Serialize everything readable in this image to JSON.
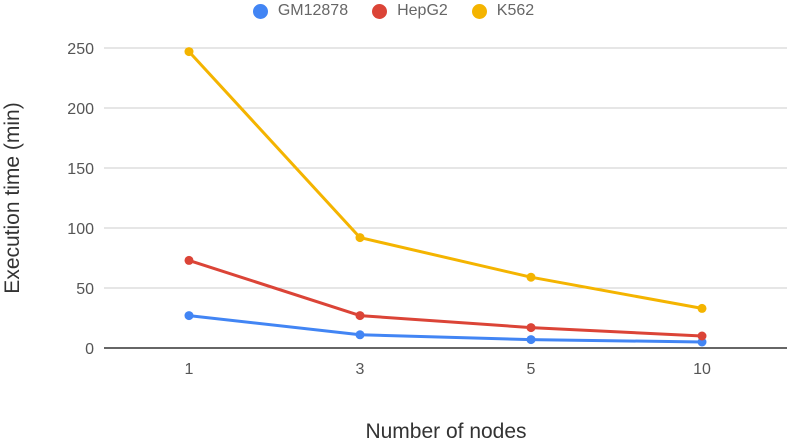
{
  "chart_data": {
    "type": "line",
    "title": "",
    "xlabel": "Number of nodes",
    "ylabel": "Execution time (min)",
    "categories": [
      "1",
      "3",
      "5",
      "10"
    ],
    "ylim": [
      0,
      250
    ],
    "yticks": [
      0,
      50,
      100,
      150,
      200,
      250
    ],
    "grid": true,
    "legend_position": "top",
    "series": [
      {
        "name": "GM12878",
        "color": "#4285F4",
        "values": [
          27,
          11,
          7,
          5
        ]
      },
      {
        "name": "HepG2",
        "color": "#DB4437",
        "values": [
          73,
          27,
          17,
          10
        ]
      },
      {
        "name": "K562",
        "color": "#F4B400",
        "values": [
          247,
          92,
          59,
          33
        ]
      }
    ]
  }
}
